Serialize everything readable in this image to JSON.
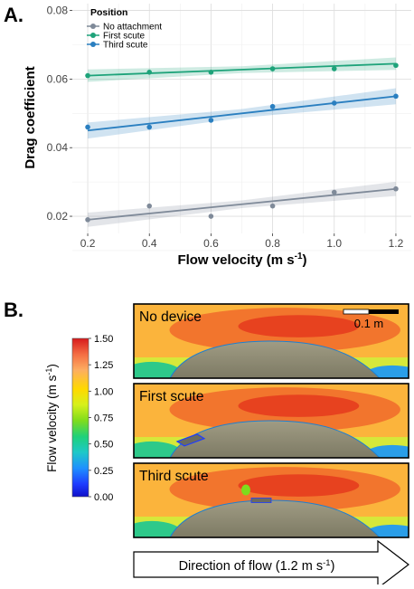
{
  "panel_a": {
    "label": "A.",
    "chart_data": {
      "type": "scatter",
      "xlabel": "Flow velocity (m s",
      "xlabel_sup": "-1",
      "xlabel_end": ")",
      "ylabel": "Drag coefficient",
      "xlim": [
        0.15,
        1.25
      ],
      "ylim": [
        0.015,
        0.082
      ],
      "xticks": [
        0.2,
        0.4,
        0.6,
        0.8,
        1.0,
        1.2
      ],
      "xtick_labels": [
        "0.2",
        "0.4",
        "0.6",
        "0.8",
        "1.0",
        "1.2"
      ],
      "yticks": [
        0.02,
        0.04,
        0.06,
        0.08
      ],
      "ytick_labels": [
        "0.02",
        "0.04",
        "0.06",
        "0.08"
      ],
      "grid": true,
      "legend_title": "Position",
      "legend_position": "top-left",
      "series": [
        {
          "name": "No attachment",
          "color": "#7f8a99",
          "x": [
            0.2,
            0.4,
            0.6,
            0.8,
            1.0,
            1.2
          ],
          "y": [
            0.019,
            0.023,
            0.02,
            0.023,
            0.027,
            0.028
          ],
          "fit": [
            0.019,
            0.028
          ],
          "band": 0.0016
        },
        {
          "name": "First scute",
          "color": "#1ea37a",
          "x": [
            0.2,
            0.4,
            0.6,
            0.8,
            1.0,
            1.2
          ],
          "y": [
            0.061,
            0.062,
            0.062,
            0.063,
            0.063,
            0.064
          ],
          "fit": [
            0.061,
            0.0645
          ],
          "band": 0.0014
        },
        {
          "name": "Third scute",
          "color": "#2a7fc0",
          "x": [
            0.2,
            0.4,
            0.6,
            0.8,
            1.0,
            1.2
          ],
          "y": [
            0.046,
            0.046,
            0.048,
            0.052,
            0.053,
            0.055
          ],
          "fit": [
            0.045,
            0.055
          ],
          "band": 0.0018
        }
      ]
    }
  },
  "panel_b": {
    "label": "B.",
    "colorbar": {
      "label": "Flow velocity (m s",
      "label_sup": "-1",
      "label_end": ")",
      "ticks": [
        "1.50",
        "1.25",
        "1.00",
        "0.75",
        "0.50",
        "0.25",
        "0.00"
      ],
      "colors": [
        "#d7191c",
        "#f46d43",
        "#fdae61",
        "#ffd900",
        "#d6f01c",
        "#7fdc1c",
        "#1fd17a",
        "#1ec8c8",
        "#1e90ff",
        "#1e3cff",
        "#1010c8"
      ]
    },
    "scale_bar": "0.1 m",
    "frames": [
      {
        "title": "No device"
      },
      {
        "title": "First scute"
      },
      {
        "title": "Third scute"
      }
    ],
    "arrow_text": "Direction of flow (1.2 m s",
    "arrow_sup": "-1",
    "arrow_end": ")"
  }
}
